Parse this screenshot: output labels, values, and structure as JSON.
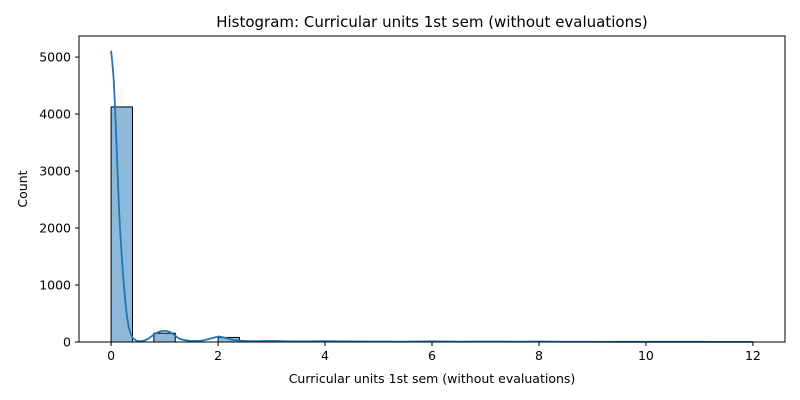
{
  "chart_data": {
    "type": "bar",
    "subtype": "histogram",
    "title": "Histogram: Curricular units 1st sem (without evaluations)",
    "xlabel": "Curricular units 1st sem (without evaluations)",
    "ylabel": "Count",
    "xlim": [
      -0.6,
      12.6
    ],
    "ylim": [
      0,
      5370
    ],
    "xticks": [
      "0",
      "2",
      "4",
      "6",
      "8",
      "10",
      "12"
    ],
    "yticks": [
      "0",
      "1000",
      "2000",
      "3000",
      "4000",
      "5000"
    ],
    "bin_width": 0.4,
    "bins": [
      {
        "x0": 0.0,
        "x1": 0.4,
        "count": 4125
      },
      {
        "x0": 0.8,
        "x1": 1.2,
        "count": 155
      },
      {
        "x0": 2.0,
        "x1": 2.4,
        "count": 80
      },
      {
        "x0": 2.8,
        "x1": 3.2,
        "count": 18
      },
      {
        "x0": 4.0,
        "x1": 4.4,
        "count": 10
      },
      {
        "x0": 4.8,
        "x1": 5.2,
        "count": 6
      },
      {
        "x0": 6.0,
        "x1": 6.4,
        "count": 6
      },
      {
        "x0": 6.8,
        "x1": 7.2,
        "count": 7
      },
      {
        "x0": 8.0,
        "x1": 8.4,
        "count": 4
      },
      {
        "x0": 9.6,
        "x1": 10.0,
        "count": 2
      },
      {
        "x0": 11.6,
        "x1": 12.0,
        "count": 2
      }
    ],
    "kde": {
      "x": [
        0.0,
        0.05,
        0.1,
        0.15,
        0.2,
        0.25,
        0.3,
        0.35,
        0.4,
        0.45,
        0.5,
        0.6,
        0.7,
        0.8,
        0.9,
        1.0,
        1.1,
        1.2,
        1.3,
        1.5,
        1.7,
        1.9,
        2.0,
        2.1,
        2.3,
        2.6,
        3.0,
        3.3,
        3.6,
        4.0,
        4.4,
        5.0,
        5.5,
        6.0,
        6.5,
        7.0,
        7.5,
        8.0,
        8.5,
        9.0,
        10.0,
        11.0,
        12.0
      ],
      "y": [
        5110,
        4580,
        3500,
        2300,
        1500,
        880,
        430,
        190,
        80,
        35,
        18,
        20,
        60,
        130,
        180,
        195,
        175,
        110,
        50,
        18,
        25,
        70,
        95,
        80,
        35,
        15,
        20,
        12,
        10,
        15,
        10,
        8,
        6,
        10,
        7,
        9,
        6,
        8,
        5,
        4,
        3,
        3,
        2
      ]
    },
    "colors": {
      "bar_fill": "#8fb9da",
      "bar_edge": "#000000",
      "kde_line": "#1f77b4"
    },
    "grid": false,
    "legend": "none"
  }
}
